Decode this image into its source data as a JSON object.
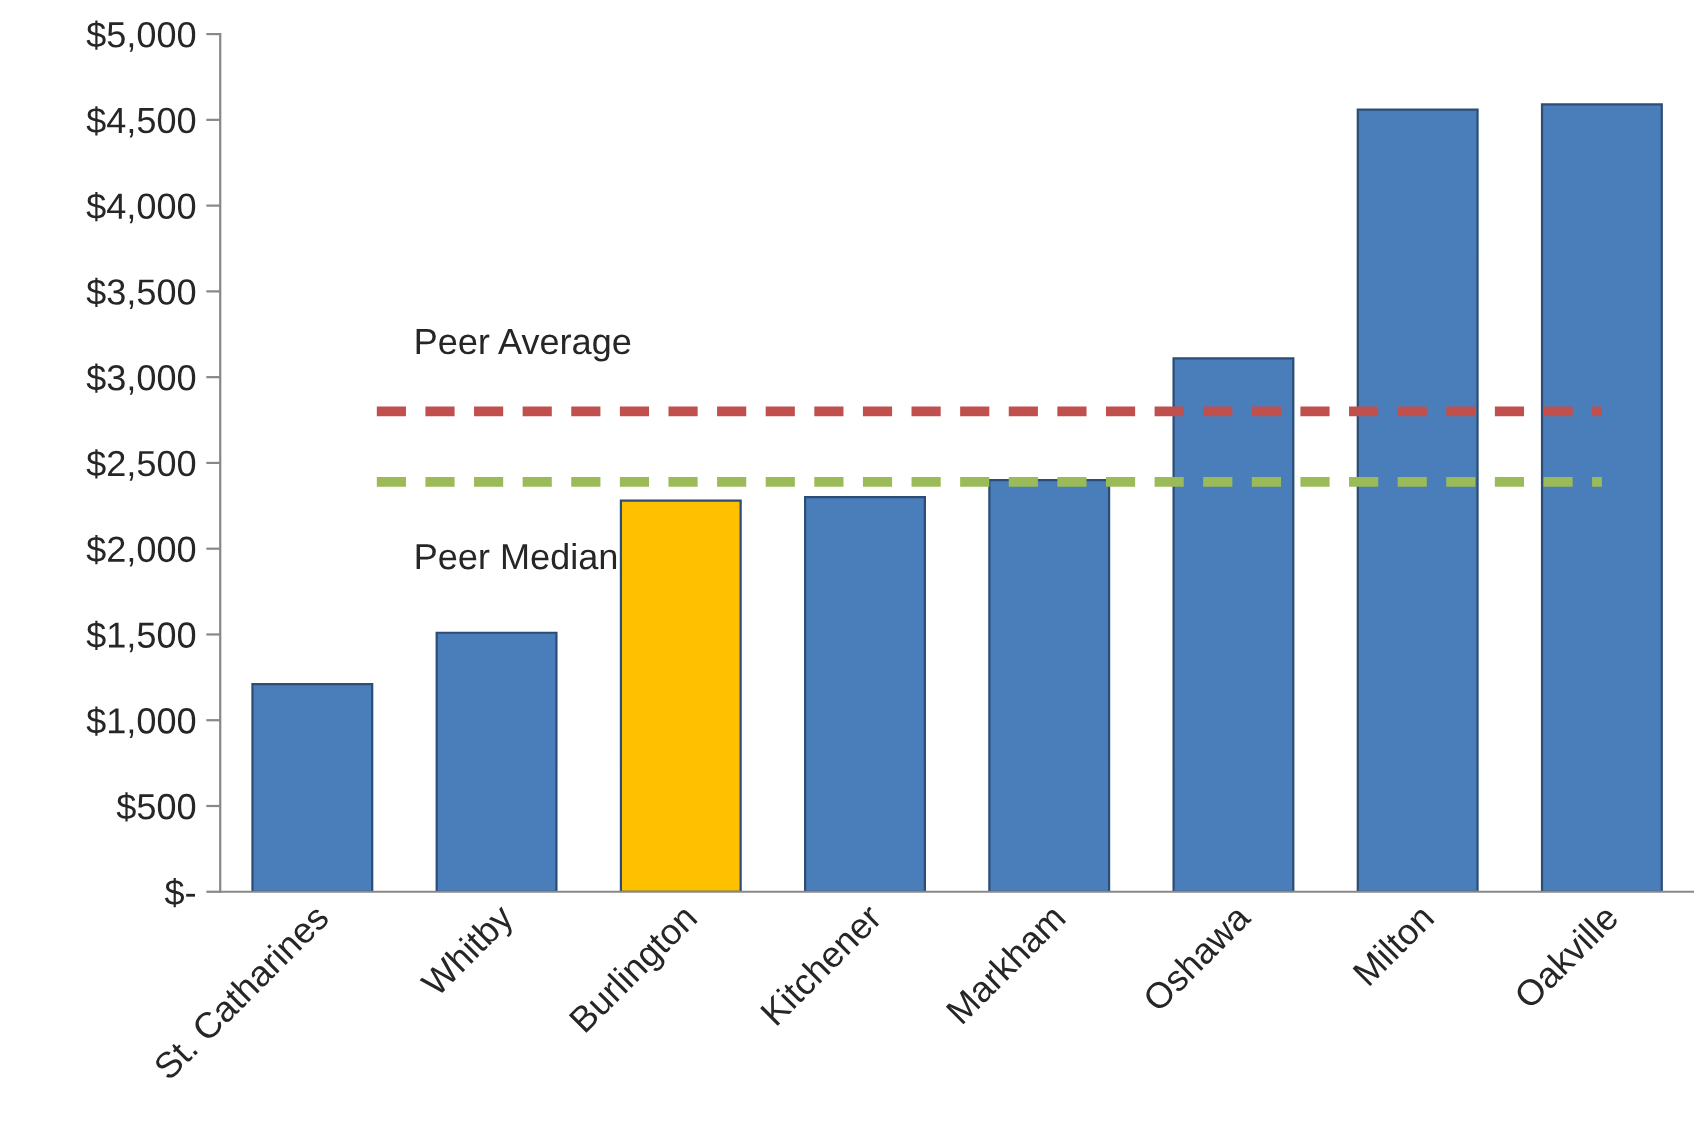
{
  "chart_data": {
    "type": "bar",
    "categories": [
      "St. Catharines",
      "Whitby",
      "Burlington",
      "Kitchener",
      "Markham",
      "Oshawa",
      "Milton",
      "Oakville"
    ],
    "values": [
      1210,
      1510,
      2280,
      2300,
      2400,
      3110,
      4560,
      4590
    ],
    "colors": [
      "#4a7ebb",
      "#4a7ebb",
      "#ffc000",
      "#4a7ebb",
      "#4a7ebb",
      "#4a7ebb",
      "#4a7ebb",
      "#4a7ebb"
    ],
    "ylim": [
      0,
      5000
    ],
    "yticks": [
      {
        "value": 0,
        "label": "$-"
      },
      {
        "value": 500,
        "label": "$500"
      },
      {
        "value": 1000,
        "label": "$1,000"
      },
      {
        "value": 1500,
        "label": "$1,500"
      },
      {
        "value": 2000,
        "label": "$2,000"
      },
      {
        "value": 2500,
        "label": "$2,500"
      },
      {
        "value": 3000,
        "label": "$3,000"
      },
      {
        "value": 3500,
        "label": "$3,500"
      },
      {
        "value": 4000,
        "label": "$4,000"
      },
      {
        "value": 4500,
        "label": "$4,500"
      },
      {
        "value": 5000,
        "label": "$5,000"
      }
    ],
    "ref_lines": [
      {
        "axis": "y",
        "value": 2800,
        "label": "Peer Average",
        "color": "#c0504d",
        "line_style": "dashed"
      },
      {
        "axis": "y",
        "value": 2390,
        "label": "Peer Median",
        "color": "#9bbb59",
        "line_style": "dashed"
      }
    ],
    "grid": false,
    "legend": false
  }
}
